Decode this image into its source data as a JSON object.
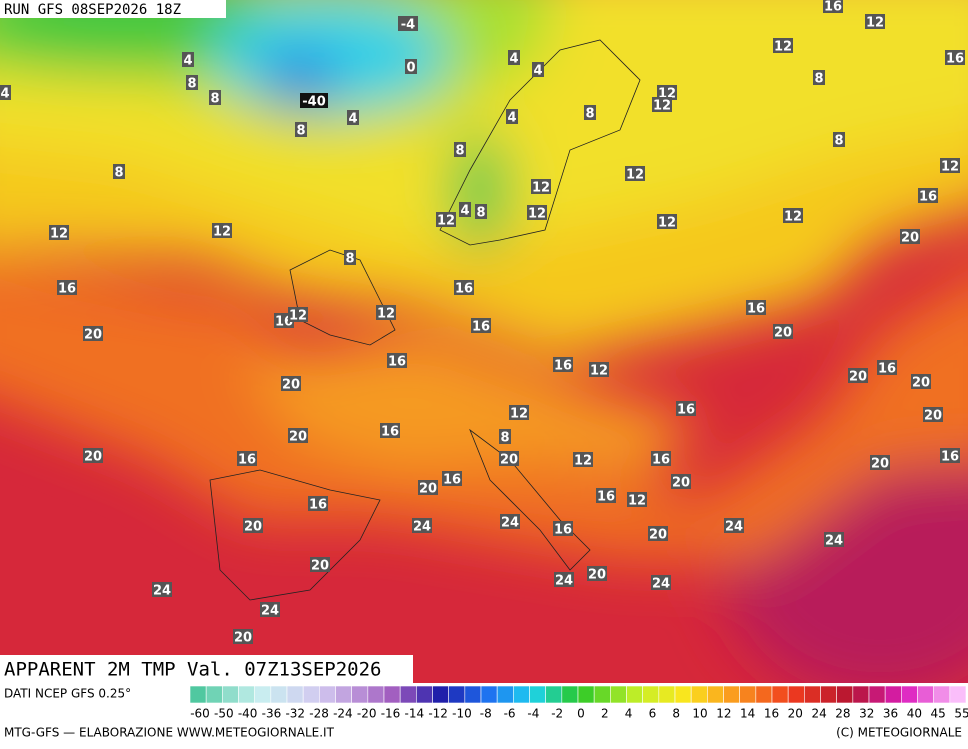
{
  "header": {
    "run": "RUN GFS 08SEP2026 18Z"
  },
  "footer": {
    "title": "APPARENT 2M TMP Val. 07Z13SEP2026",
    "source": "DATI NCEP GFS 0.25°",
    "credit": "MTG-GFS — ELABORAZIONE WWW.METEOGIORNALE.IT",
    "copyright": "(C) METEOGIORNALE"
  },
  "legend": {
    "ticks": [
      -60,
      -50,
      -40,
      -36,
      -32,
      -28,
      -24,
      -20,
      -16,
      -14,
      -12,
      -10,
      -8,
      -6,
      -4,
      -2,
      0,
      2,
      4,
      6,
      8,
      10,
      12,
      14,
      16,
      20,
      24,
      28,
      32,
      36,
      40,
      45,
      55
    ]
  },
  "map_labels": [
    -4,
    0,
    -40,
    4,
    8,
    8,
    4,
    4,
    8,
    8,
    8,
    4,
    4,
    4,
    8,
    12,
    12,
    12,
    8,
    8,
    12,
    16,
    16,
    12,
    16,
    20,
    12,
    12,
    12,
    12,
    4,
    8,
    12,
    12,
    12,
    12,
    8,
    16,
    16,
    16,
    12,
    12,
    16,
    16,
    20,
    20,
    16,
    16,
    12,
    20,
    20,
    16,
    20,
    20,
    16,
    12,
    8,
    20,
    16,
    20,
    16,
    20,
    12,
    16,
    20,
    16,
    16,
    20,
    20,
    16,
    12,
    16,
    20,
    24,
    24,
    16,
    20,
    24,
    24,
    20,
    24,
    20,
    24,
    24,
    24,
    20
  ]
}
